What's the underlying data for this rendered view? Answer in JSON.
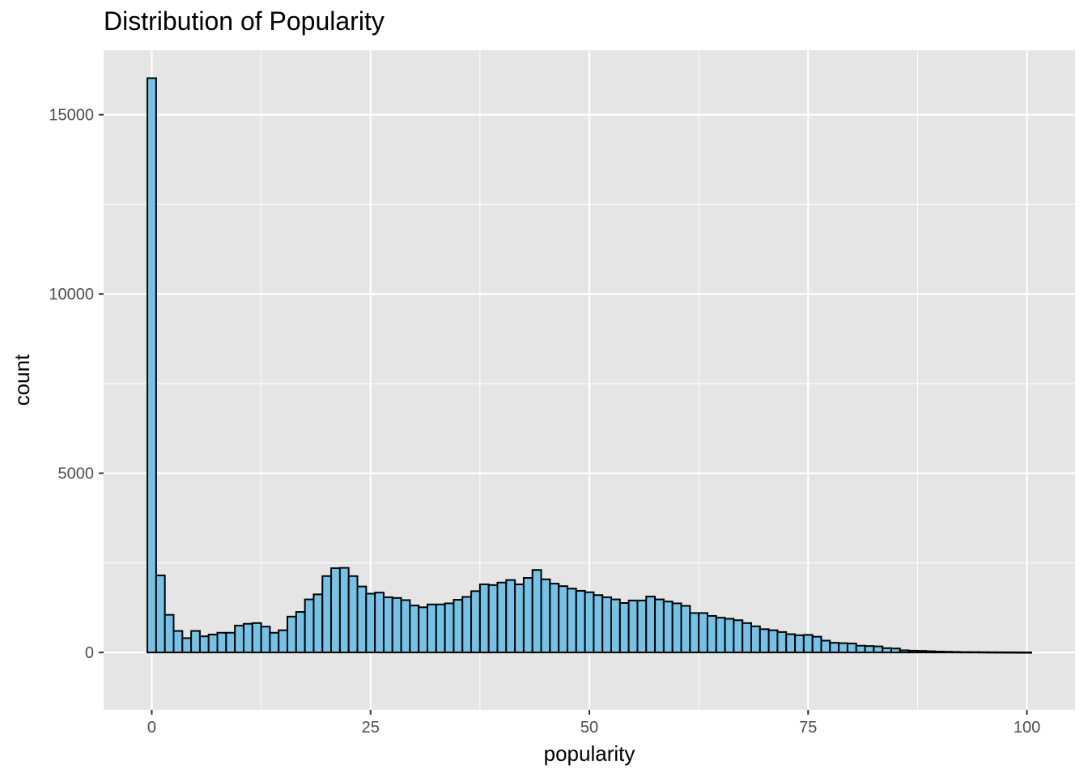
{
  "chart_data": {
    "type": "bar",
    "title": "Distribution of Popularity",
    "xlabel": "popularity",
    "ylabel": "count",
    "xlim": [
      -5.5,
      105.5
    ],
    "ylim": [
      -1600,
      16800
    ],
    "xticks": [
      0,
      25,
      50,
      75,
      100
    ],
    "xtick_labels": [
      "0",
      "25",
      "50",
      "75",
      "100"
    ],
    "yticks": [
      0,
      5000,
      10000,
      15000
    ],
    "ytick_labels": [
      "0",
      "5000",
      "10000",
      "15000"
    ],
    "grid": true,
    "bin_width": 1,
    "bin_centers": [
      0,
      1,
      2,
      3,
      4,
      5,
      6,
      7,
      8,
      9,
      10,
      11,
      12,
      13,
      14,
      15,
      16,
      17,
      18,
      19,
      20,
      21,
      22,
      23,
      24,
      25,
      26,
      27,
      28,
      29,
      30,
      31,
      32,
      33,
      34,
      35,
      36,
      37,
      38,
      39,
      40,
      41,
      42,
      43,
      44,
      45,
      46,
      47,
      48,
      49,
      50,
      51,
      52,
      53,
      54,
      55,
      56,
      57,
      58,
      59,
      60,
      61,
      62,
      63,
      64,
      65,
      66,
      67,
      68,
      69,
      70,
      71,
      72,
      73,
      74,
      75,
      76,
      77,
      78,
      79,
      80,
      81,
      82,
      83,
      84,
      85,
      86,
      87,
      88,
      89,
      90,
      91,
      92,
      93,
      94,
      95,
      96,
      97,
      98,
      99,
      100
    ],
    "values": [
      16020,
      2150,
      1050,
      600,
      400,
      600,
      450,
      500,
      550,
      550,
      750,
      800,
      820,
      720,
      550,
      620,
      1000,
      1130,
      1480,
      1620,
      2130,
      2350,
      2360,
      2130,
      1840,
      1640,
      1670,
      1540,
      1520,
      1460,
      1310,
      1260,
      1340,
      1340,
      1370,
      1470,
      1550,
      1710,
      1900,
      1880,
      1950,
      2020,
      1900,
      2080,
      2300,
      2040,
      1920,
      1850,
      1780,
      1720,
      1680,
      1600,
      1540,
      1480,
      1380,
      1450,
      1450,
      1560,
      1480,
      1420,
      1370,
      1300,
      1100,
      1100,
      1020,
      970,
      940,
      900,
      820,
      730,
      650,
      620,
      570,
      510,
      480,
      490,
      440,
      330,
      270,
      260,
      250,
      190,
      180,
      170,
      120,
      110,
      60,
      50,
      45,
      35,
      25,
      20,
      15,
      10,
      10,
      8,
      6,
      5,
      4,
      3,
      2
    ],
    "bar_fill": "#74c3e6",
    "bar_stroke": "#000000",
    "panel_background": "#e5e5e5",
    "grid_color": "#ffffff"
  }
}
